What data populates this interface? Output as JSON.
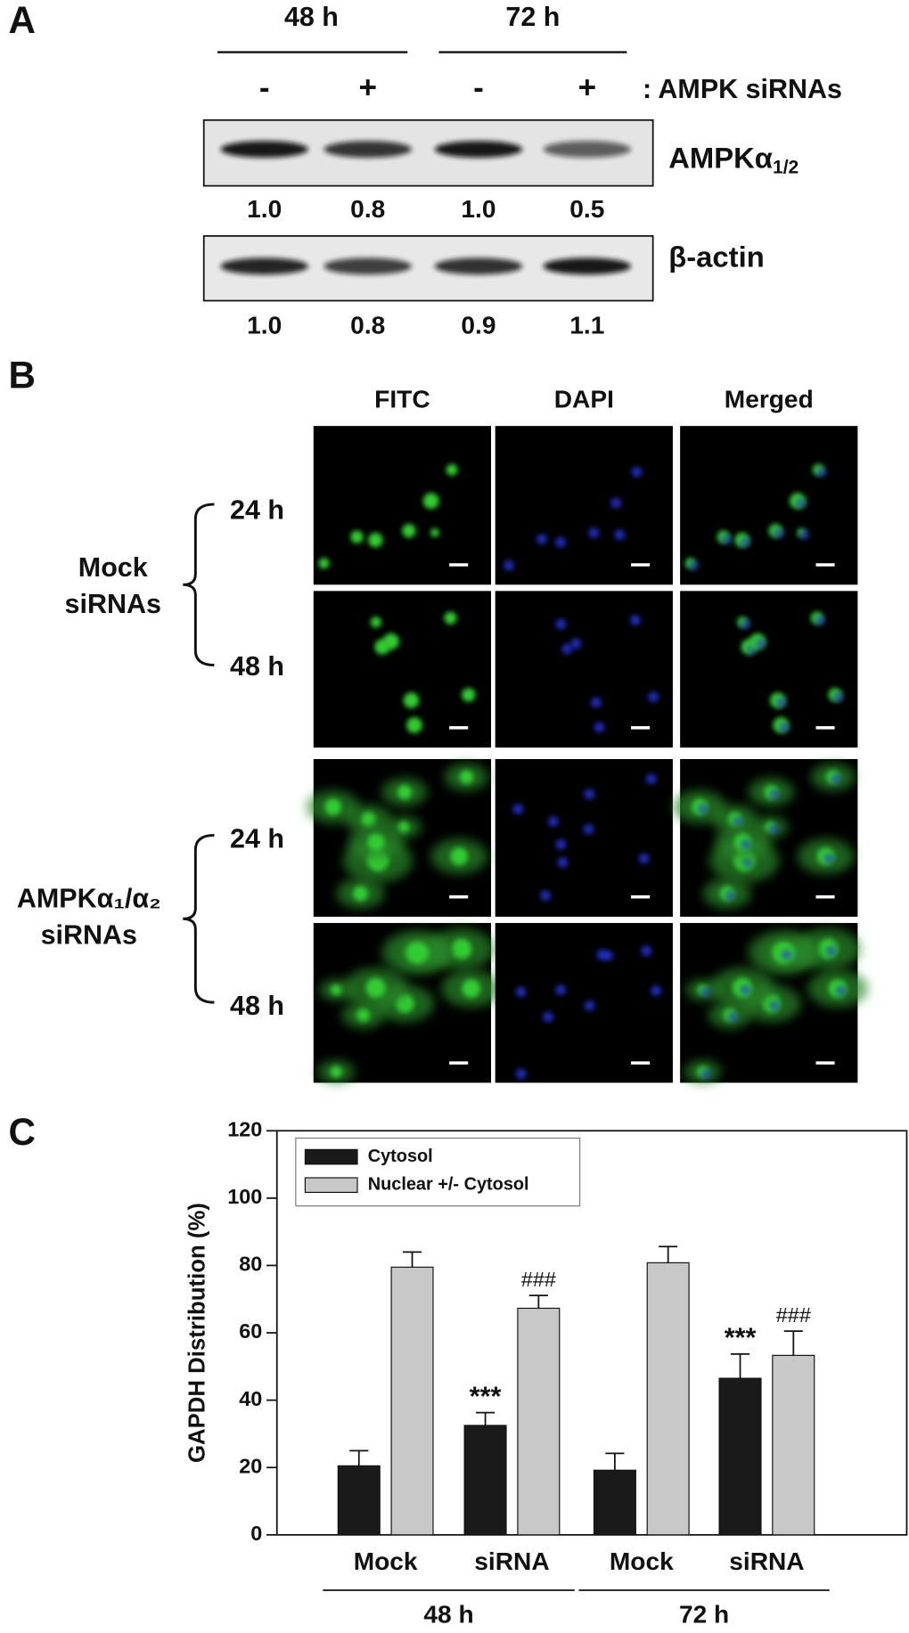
{
  "panel_a": {
    "label": "A",
    "time_labels": [
      "48 h",
      "72 h"
    ],
    "treatments": [
      "-",
      "+",
      "-",
      "+"
    ],
    "treatment_label": ": AMPK siRNAs",
    "blots": [
      {
        "name": "AMPKα",
        "sub": "1/2",
        "values": [
          1.0,
          0.8,
          1.0,
          0.5
        ],
        "value_labels": [
          "1.0",
          "0.8",
          "1.0",
          "0.5"
        ]
      },
      {
        "name": "β-actin",
        "values": [
          1.0,
          0.8,
          0.9,
          1.1
        ],
        "value_labels": [
          "1.0",
          "0.8",
          "0.9",
          "1.1"
        ]
      }
    ]
  },
  "panel_b": {
    "label": "B",
    "columns": [
      "FITC",
      "DAPI",
      "Merged"
    ],
    "groups": [
      {
        "lines": [
          "Mock",
          "siRNAs"
        ],
        "times": [
          "24 h",
          "48 h"
        ]
      },
      {
        "lines": [
          "AMPKα₁/α₂",
          "siRNAs"
        ],
        "times": [
          "24 h",
          "48 h"
        ]
      }
    ]
  },
  "panel_c": {
    "label": "C"
  },
  "chart_data": {
    "type": "bar",
    "ylabel": "GAPDH Distribution (%)",
    "categories": [
      "Mock",
      "siRNA",
      "Mock",
      "siRNA"
    ],
    "group_labels": [
      "48 h",
      "72 h"
    ],
    "series": [
      {
        "name": "Cytosol",
        "color": "#1a1a1a",
        "values": [
          20.5,
          32.5,
          19.2,
          46.5
        ],
        "errors": [
          4.5,
          3.8,
          5.0,
          7.2
        ],
        "annotations": [
          null,
          "***",
          null,
          "***"
        ]
      },
      {
        "name": "Nuclear +/- Cytosol",
        "color": "#c8c8c8",
        "values": [
          79.5,
          67.3,
          80.8,
          53.3
        ],
        "errors": [
          4.5,
          3.8,
          4.8,
          7.2
        ],
        "annotations": [
          null,
          "###",
          null,
          "###"
        ]
      }
    ],
    "ylim": [
      0,
      120
    ],
    "yticks": [
      0,
      20,
      40,
      60,
      80,
      100,
      120
    ],
    "legend": "upper left"
  }
}
